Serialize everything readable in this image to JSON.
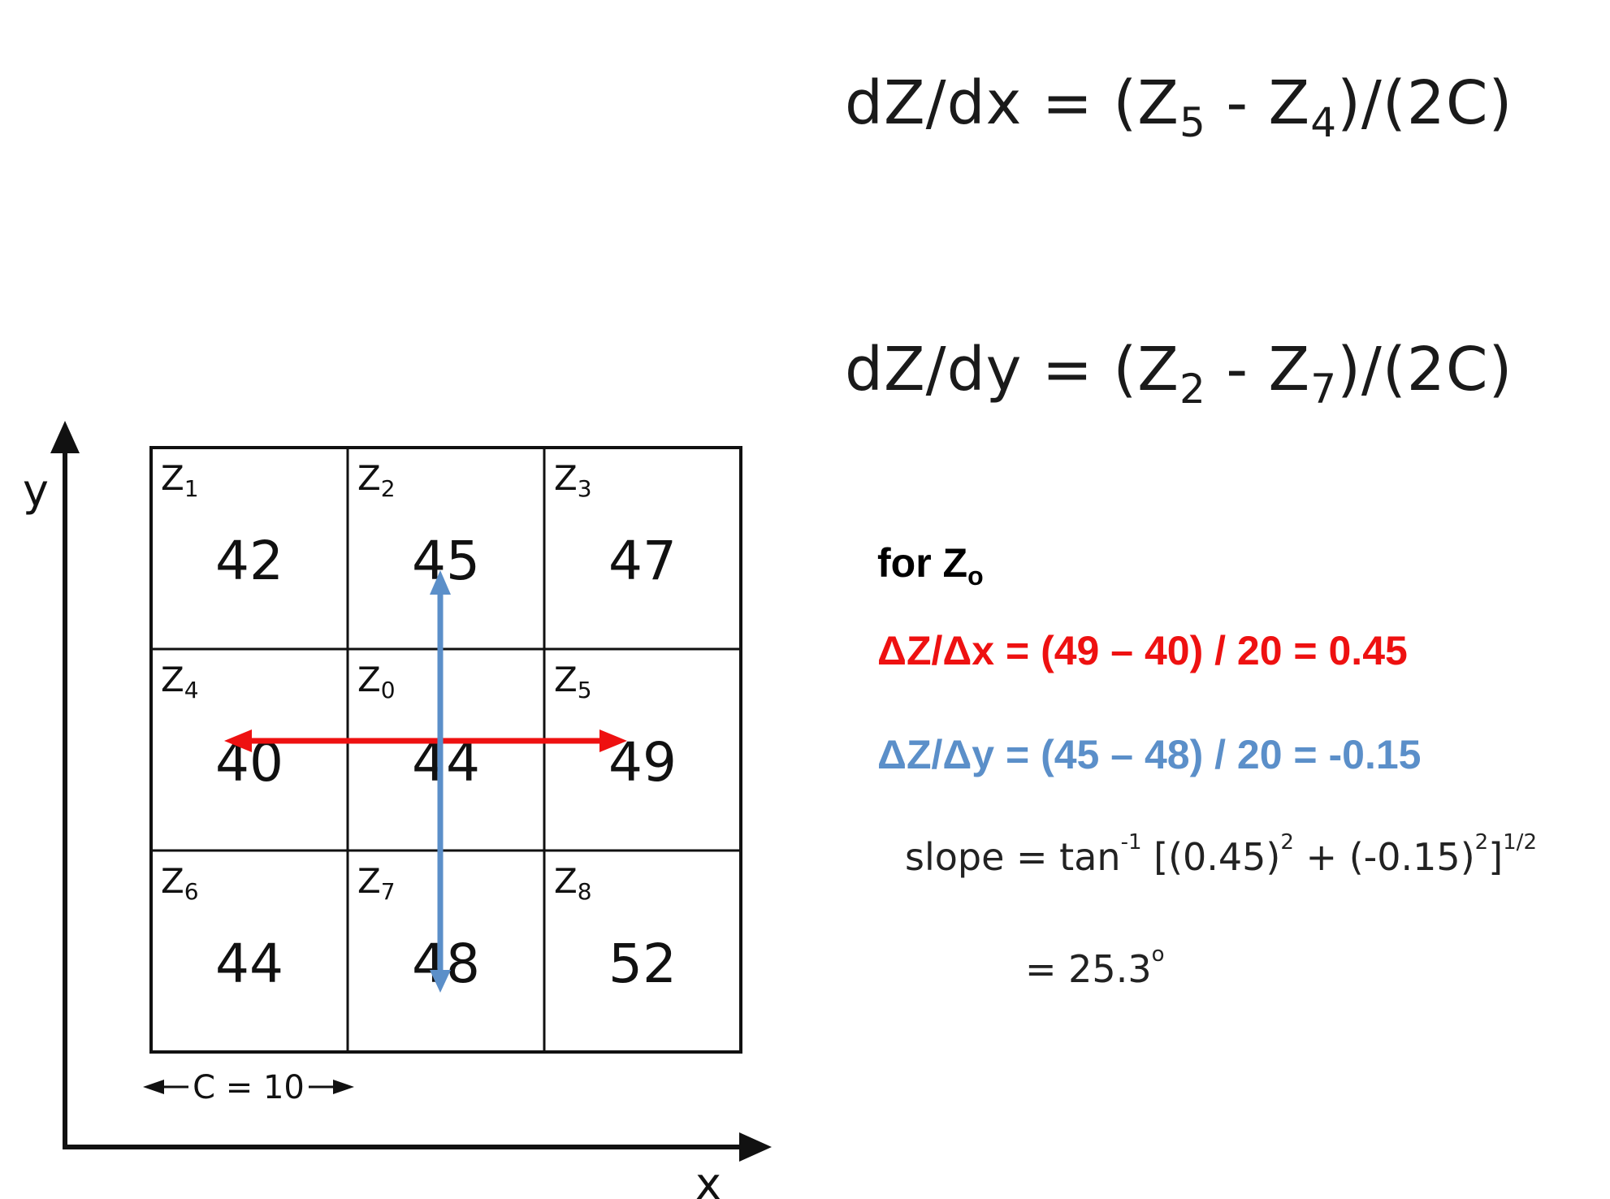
{
  "equations": {
    "dx": {
      "lhs": "dZ/dx = (Z",
      "sub1": "5",
      "mid": " - Z",
      "sub2": "4",
      "rhs": ")/(2C)"
    },
    "dy": {
      "lhs": "dZ/dy = (Z",
      "sub1": "2",
      "mid": " - Z",
      "sub2": "7",
      "rhs": ")/(2C)"
    }
  },
  "calc": {
    "for_label": "for Z",
    "for_sub": "o",
    "dzdx": "ΔZ/Δx = (49 – 40) / 20 = 0.45",
    "dzdy": "ΔZ/Δy = (45 – 48) / 20 = -0.15",
    "slope": {
      "prefix": "slope = tan",
      "inv": "-1",
      "part1": " [(0.45)",
      "sq1": "2",
      "part2": " + (-0.15)",
      "sq2": "2",
      "part3": "]",
      "half": "1/2",
      "result": "= 25.3",
      "deg": "o"
    }
  },
  "grid": {
    "cells": [
      {
        "label": "Z",
        "sub": "1",
        "value": "42"
      },
      {
        "label": "Z",
        "sub": "2",
        "value": "45"
      },
      {
        "label": "Z",
        "sub": "3",
        "value": "47"
      },
      {
        "label": "Z",
        "sub": "4",
        "value": "40"
      },
      {
        "label": "Z",
        "sub": "0",
        "value": "44"
      },
      {
        "label": "Z",
        "sub": "5",
        "value": "49"
      },
      {
        "label": "Z",
        "sub": "6",
        "value": "44"
      },
      {
        "label": "Z",
        "sub": "7",
        "value": "48"
      },
      {
        "label": "Z",
        "sub": "8",
        "value": "52"
      }
    ],
    "spacing_label": "C = 10"
  },
  "axes": {
    "x_label": "x",
    "y_label": "y"
  },
  "colors": {
    "red": "#ee1111",
    "blue": "#5b8fc9",
    "ink": "#111111"
  }
}
